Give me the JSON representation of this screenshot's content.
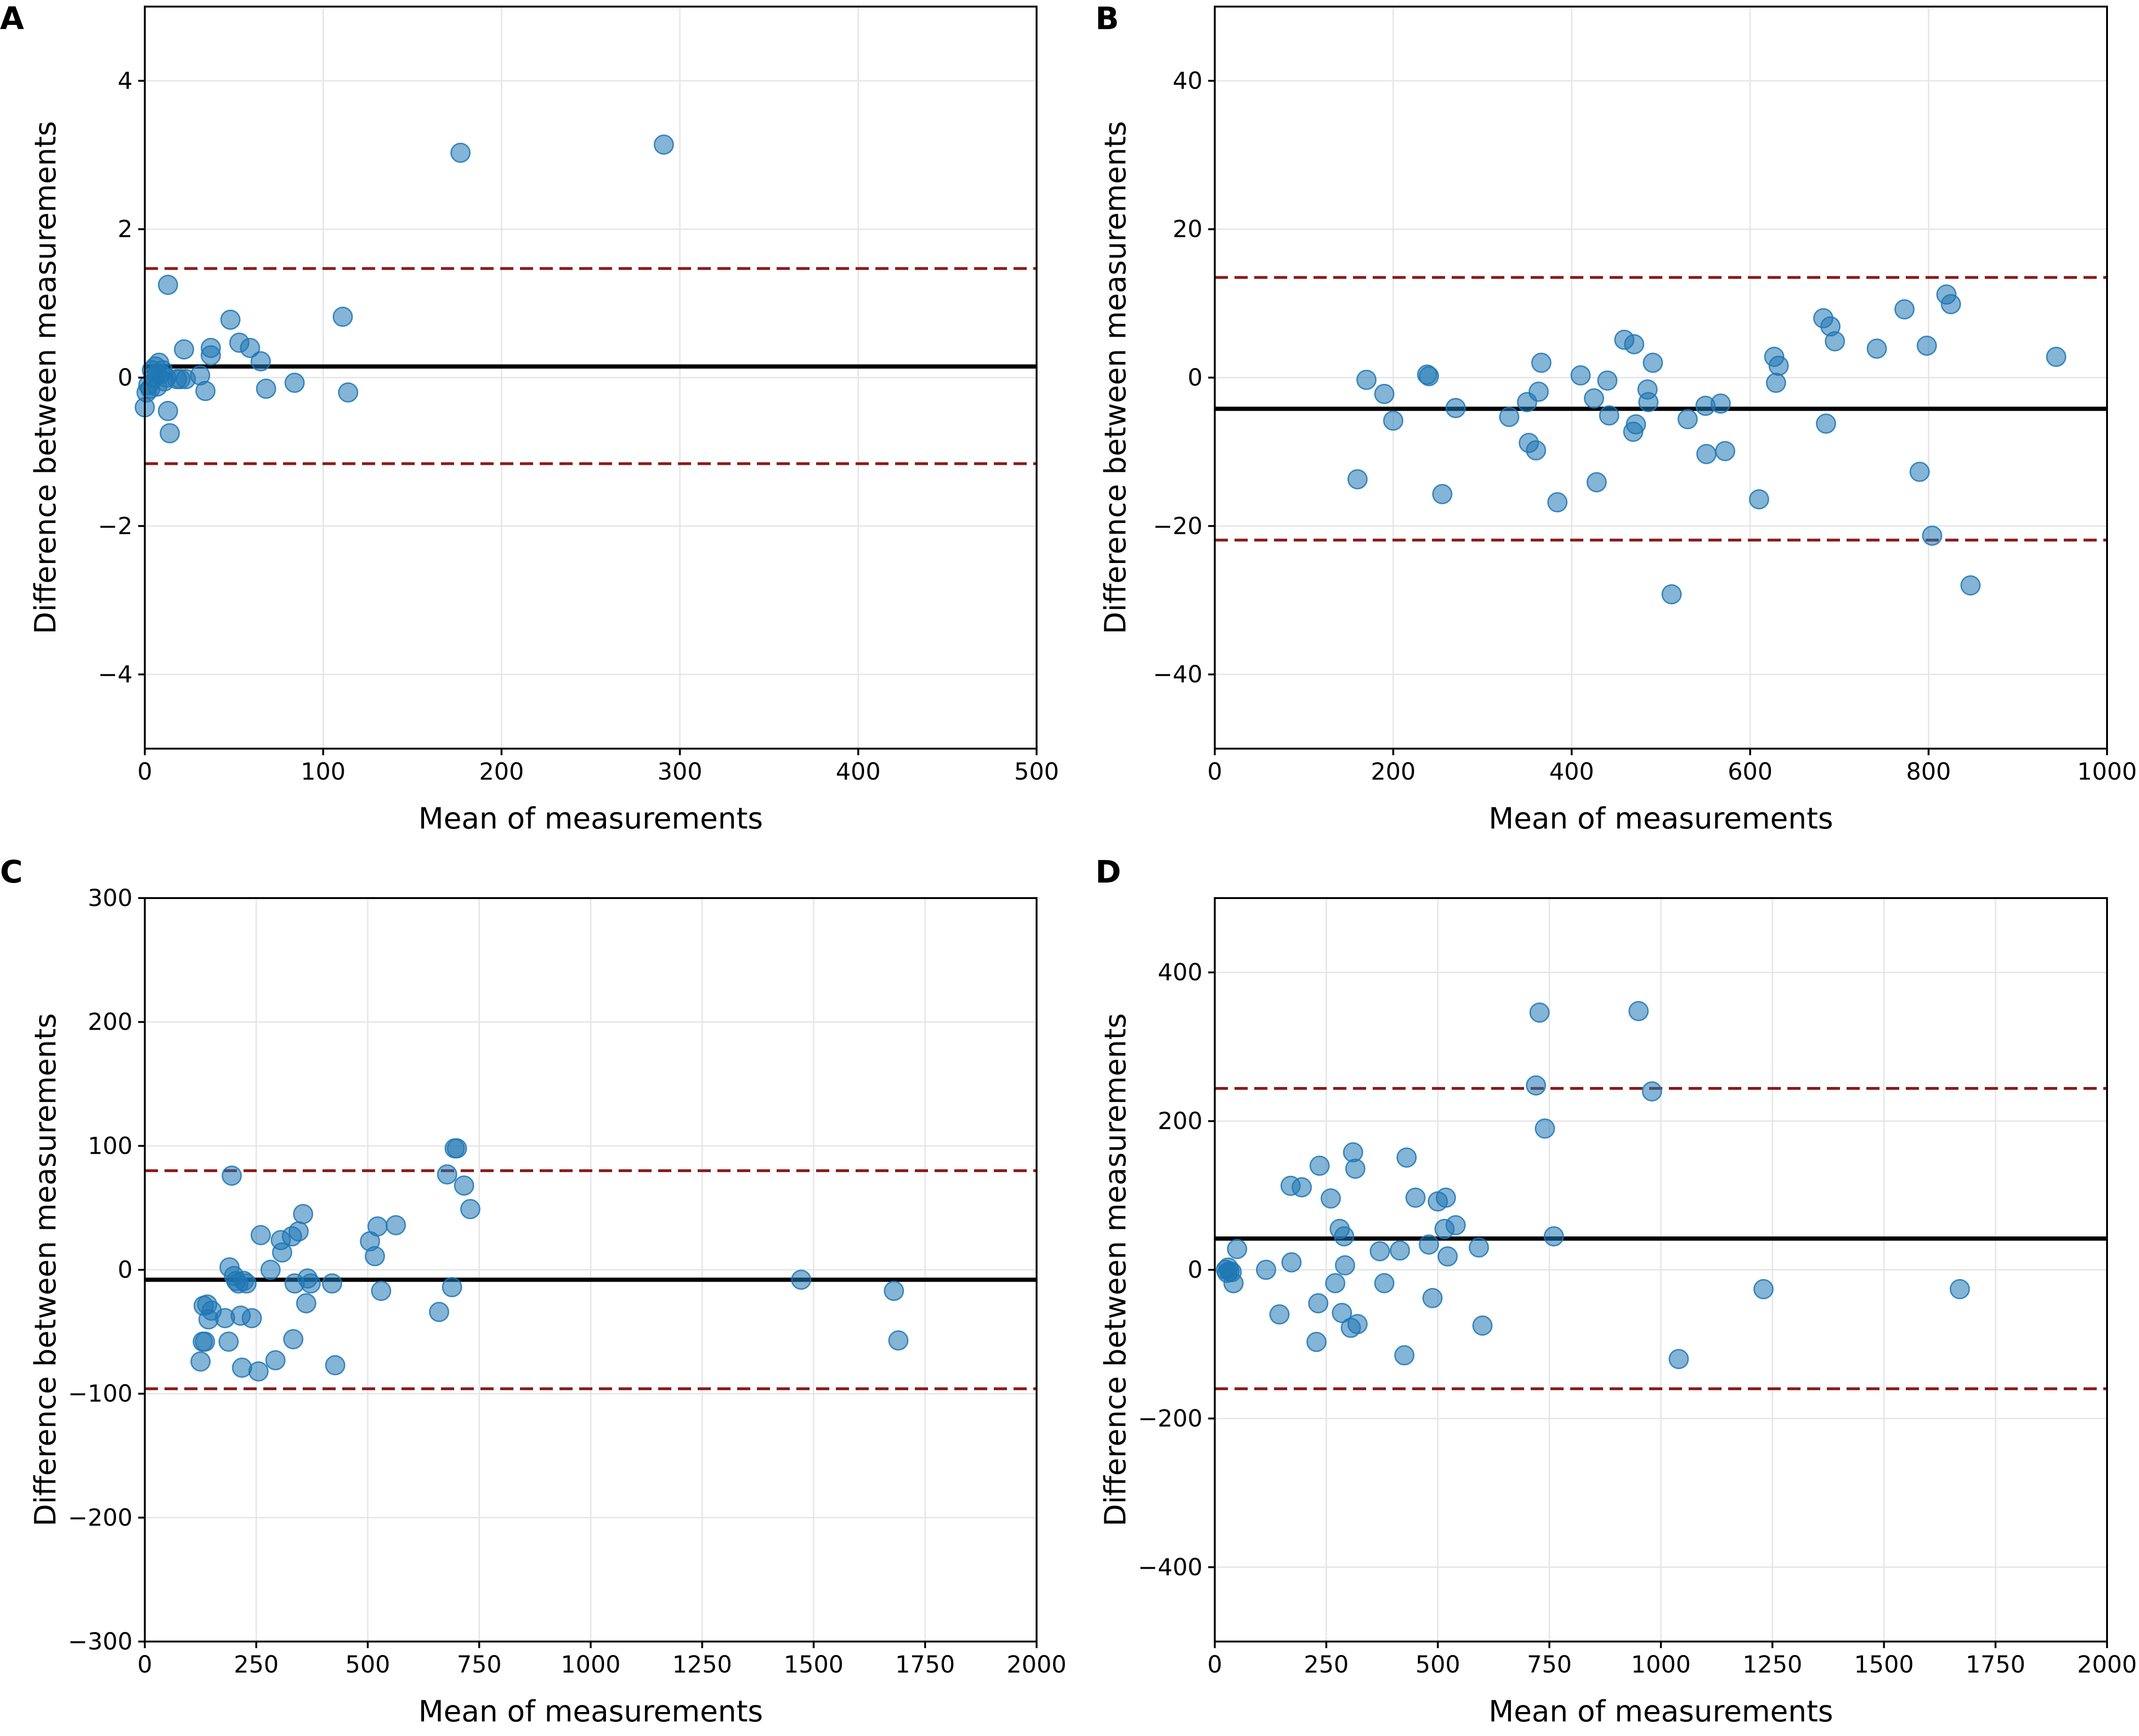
{
  "chart_data": [
    {
      "panel": "A",
      "type": "scatter",
      "title": "",
      "xlabel": "Mean of measurements",
      "ylabel": "Difference between measurements",
      "xlim": [
        0,
        500
      ],
      "ylim": [
        -5,
        5
      ],
      "xticks": [
        0,
        100,
        200,
        300,
        400,
        500
      ],
      "yticks": [
        -4,
        -2,
        0,
        2,
        4
      ],
      "xtick_labels": [
        "0",
        "100",
        "200",
        "300",
        "400",
        "500"
      ],
      "ytick_labels": [
        "−4",
        "−2",
        "0",
        "2",
        "4"
      ],
      "grid": true,
      "mean_difference": 0.15,
      "upper_loa": 1.47,
      "lower_loa": -1.16,
      "points": [
        [
          0,
          -0.4
        ],
        [
          1,
          -0.2
        ],
        [
          2,
          -0.1
        ],
        [
          3,
          -0.15
        ],
        [
          4,
          0.1
        ],
        [
          5,
          0.0
        ],
        [
          6,
          0.15
        ],
        [
          7,
          0.05
        ],
        [
          7,
          -0.12
        ],
        [
          8,
          0.2
        ],
        [
          9,
          0.05
        ],
        [
          10,
          0.1
        ],
        [
          11,
          -0.05
        ],
        [
          12,
          0.0
        ],
        [
          13,
          -0.45
        ],
        [
          13,
          1.25
        ],
        [
          14,
          -0.75
        ],
        [
          18,
          -0.02
        ],
        [
          20,
          -0.02
        ],
        [
          22,
          0.38
        ],
        [
          23,
          -0.02
        ],
        [
          31,
          0.03
        ],
        [
          34,
          -0.18
        ],
        [
          37,
          0.4
        ],
        [
          37,
          0.3
        ],
        [
          48,
          0.78
        ],
        [
          53,
          0.47
        ],
        [
          59,
          0.4
        ],
        [
          65,
          0.22
        ],
        [
          68,
          -0.15
        ],
        [
          84,
          -0.07
        ],
        [
          111,
          0.82
        ],
        [
          114,
          -0.2
        ],
        [
          177,
          3.03
        ],
        [
          291,
          3.14
        ]
      ]
    },
    {
      "panel": "B",
      "type": "scatter",
      "title": "",
      "xlabel": "Mean of measurements",
      "ylabel": "Difference between measurements",
      "xlim": [
        0,
        1000
      ],
      "ylim": [
        -50,
        50
      ],
      "xticks": [
        0,
        200,
        400,
        600,
        800,
        1000
      ],
      "yticks": [
        -40,
        -20,
        0,
        20,
        40
      ],
      "xtick_labels": [
        "0",
        "200",
        "400",
        "600",
        "800",
        "1000"
      ],
      "ytick_labels": [
        "−40",
        "−20",
        "0",
        "20",
        "40"
      ],
      "grid": true,
      "mean_difference": -4.2,
      "upper_loa": 13.5,
      "lower_loa": -21.9,
      "points": [
        [
          160,
          -13.7
        ],
        [
          170,
          -0.3
        ],
        [
          190,
          -2.2
        ],
        [
          200,
          -5.8
        ],
        [
          238,
          0.4
        ],
        [
          240,
          0.2
        ],
        [
          255,
          -15.7
        ],
        [
          270,
          -4.1
        ],
        [
          330,
          -5.3
        ],
        [
          350,
          -3.3
        ],
        [
          352,
          -8.8
        ],
        [
          360,
          -9.8
        ],
        [
          363,
          -1.9
        ],
        [
          366,
          2.0
        ],
        [
          384,
          -16.8
        ],
        [
          410,
          0.3
        ],
        [
          425,
          -2.8
        ],
        [
          428,
          -14.1
        ],
        [
          440,
          -0.4
        ],
        [
          442,
          -5.1
        ],
        [
          459,
          5.1
        ],
        [
          469,
          -7.3
        ],
        [
          470,
          4.5
        ],
        [
          472,
          -6.3
        ],
        [
          485,
          -1.6
        ],
        [
          486,
          -3.3
        ],
        [
          491,
          2.0
        ],
        [
          512,
          -29.2
        ],
        [
          530,
          -5.6
        ],
        [
          550,
          -3.8
        ],
        [
          551,
          -10.3
        ],
        [
          567,
          -3.5
        ],
        [
          572,
          -9.9
        ],
        [
          610,
          -16.4
        ],
        [
          627,
          2.8
        ],
        [
          629,
          -0.7
        ],
        [
          632,
          1.6
        ],
        [
          682,
          8.0
        ],
        [
          685,
          -6.2
        ],
        [
          690,
          6.9
        ],
        [
          695,
          4.9
        ],
        [
          742,
          3.9
        ],
        [
          773,
          9.2
        ],
        [
          790,
          -12.7
        ],
        [
          798,
          4.3
        ],
        [
          804,
          -21.3
        ],
        [
          820,
          11.2
        ],
        [
          825,
          9.9
        ],
        [
          847,
          -28.0
        ],
        [
          943,
          2.8
        ]
      ]
    },
    {
      "panel": "C",
      "type": "scatter",
      "title": "",
      "xlabel": "Mean of measurements",
      "ylabel": "Difference between measurements",
      "xlim": [
        0,
        2000
      ],
      "ylim": [
        -300,
        300
      ],
      "xticks": [
        0,
        250,
        500,
        750,
        1000,
        1250,
        1500,
        1750,
        2000
      ],
      "yticks": [
        -300,
        -200,
        -100,
        0,
        100,
        200,
        300
      ],
      "xtick_labels": [
        "0",
        "250",
        "500",
        "750",
        "1000",
        "1250",
        "1500",
        "1750",
        "2000"
      ],
      "ytick_labels": [
        "−300",
        "−200",
        "−100",
        "0",
        "100",
        "200",
        "300"
      ],
      "grid": true,
      "mean_difference": -8,
      "upper_loa": 80,
      "lower_loa": -96,
      "points": [
        [
          125,
          -74
        ],
        [
          130,
          -58
        ],
        [
          132,
          -29
        ],
        [
          135,
          -58
        ],
        [
          140,
          -28
        ],
        [
          143,
          -40
        ],
        [
          150,
          -33
        ],
        [
          180,
          -39
        ],
        [
          188,
          -58
        ],
        [
          190,
          2
        ],
        [
          195,
          76
        ],
        [
          200,
          -5
        ],
        [
          205,
          -9
        ],
        [
          210,
          -11
        ],
        [
          215,
          -37
        ],
        [
          218,
          -79
        ],
        [
          222,
          -9
        ],
        [
          228,
          -11
        ],
        [
          240,
          -39
        ],
        [
          255,
          -82
        ],
        [
          260,
          28
        ],
        [
          282,
          0
        ],
        [
          293,
          -73
        ],
        [
          305,
          24
        ],
        [
          308,
          14
        ],
        [
          330,
          27
        ],
        [
          333,
          -56
        ],
        [
          336,
          -11
        ],
        [
          345,
          31
        ],
        [
          355,
          45
        ],
        [
          362,
          -27
        ],
        [
          365,
          -7
        ],
        [
          372,
          -11
        ],
        [
          420,
          -11
        ],
        [
          427,
          -77
        ],
        [
          505,
          23
        ],
        [
          516,
          11
        ],
        [
          522,
          35
        ],
        [
          530,
          -17
        ],
        [
          563,
          36
        ],
        [
          660,
          -34
        ],
        [
          678,
          77
        ],
        [
          689,
          -14
        ],
        [
          695,
          98
        ],
        [
          700,
          98
        ],
        [
          716,
          68
        ],
        [
          730,
          49
        ],
        [
          1472,
          -8
        ],
        [
          1680,
          -17
        ],
        [
          1690,
          -57
        ]
      ]
    },
    {
      "panel": "D",
      "type": "scatter",
      "title": "",
      "xlabel": "Mean of measurements",
      "ylabel": "Difference between measurements",
      "xlim": [
        0,
        2000
      ],
      "ylim": [
        -500,
        500
      ],
      "xticks": [
        0,
        250,
        500,
        750,
        1000,
        1250,
        1500,
        1750,
        2000
      ],
      "yticks": [
        -400,
        -200,
        0,
        200,
        400
      ],
      "xtick_labels": [
        "0",
        "250",
        "500",
        "750",
        "1000",
        "1250",
        "1500",
        "1750",
        "2000"
      ],
      "ytick_labels": [
        "−400",
        "−200",
        "0",
        "200",
        "400"
      ],
      "grid": true,
      "mean_difference": 42,
      "upper_loa": 244,
      "lower_loa": -160,
      "points": [
        [
          25,
          0
        ],
        [
          28,
          -4
        ],
        [
          30,
          3
        ],
        [
          33,
          -2
        ],
        [
          38,
          -3
        ],
        [
          42,
          -18
        ],
        [
          50,
          28
        ],
        [
          115,
          0
        ],
        [
          145,
          -60
        ],
        [
          170,
          113
        ],
        [
          172,
          10
        ],
        [
          195,
          111
        ],
        [
          228,
          -97
        ],
        [
          232,
          -45
        ],
        [
          235,
          140
        ],
        [
          260,
          96
        ],
        [
          270,
          -18
        ],
        [
          280,
          55
        ],
        [
          285,
          -58
        ],
        [
          290,
          45
        ],
        [
          292,
          6
        ],
        [
          305,
          -78
        ],
        [
          310,
          158
        ],
        [
          315,
          136
        ],
        [
          320,
          -73
        ],
        [
          370,
          25
        ],
        [
          380,
          -18
        ],
        [
          415,
          26
        ],
        [
          425,
          -115
        ],
        [
          430,
          151
        ],
        [
          450,
          97
        ],
        [
          480,
          34
        ],
        [
          488,
          -38
        ],
        [
          500,
          92
        ],
        [
          515,
          55
        ],
        [
          518,
          97
        ],
        [
          522,
          18
        ],
        [
          540,
          60
        ],
        [
          592,
          30
        ],
        [
          600,
          -75
        ],
        [
          720,
          248
        ],
        [
          728,
          346
        ],
        [
          740,
          190
        ],
        [
          760,
          45
        ],
        [
          950,
          348
        ],
        [
          980,
          240
        ],
        [
          1040,
          -120
        ],
        [
          1230,
          -26
        ],
        [
          1670,
          -26
        ]
      ]
    }
  ]
}
